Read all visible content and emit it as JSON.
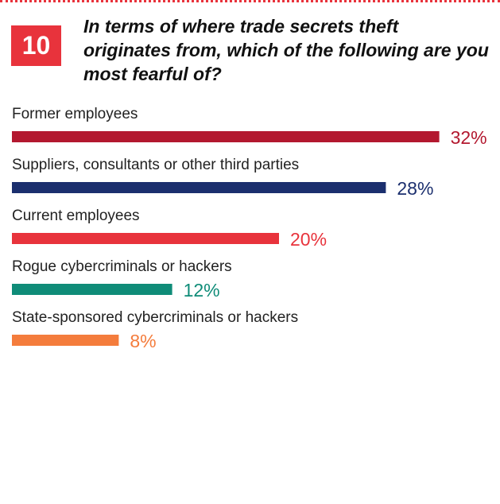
{
  "question": {
    "number": "10",
    "text": "In terms of where trade secrets theft originates from, which of the following are you most fearful of?"
  },
  "colors": {
    "accent": "#e8333c",
    "rule": "#e8333c"
  },
  "chart_data": {
    "type": "bar",
    "orientation": "horizontal",
    "categories": [
      "Former employees",
      "Suppliers, consultants or other third parties",
      "Current employees",
      "Rogue cybercriminals or hackers",
      "State-sponsored cybercriminals or hackers"
    ],
    "values": [
      32,
      28,
      20,
      12,
      8
    ],
    "value_labels": [
      "32%",
      "28%",
      "20%",
      "12%",
      "8%"
    ],
    "bar_colors": [
      "#b3182f",
      "#1b2f6e",
      "#e8333c",
      "#0f8c78",
      "#f47c3c"
    ],
    "unit": "%",
    "xlim": [
      0,
      100
    ],
    "grid": false,
    "legend": "none"
  }
}
